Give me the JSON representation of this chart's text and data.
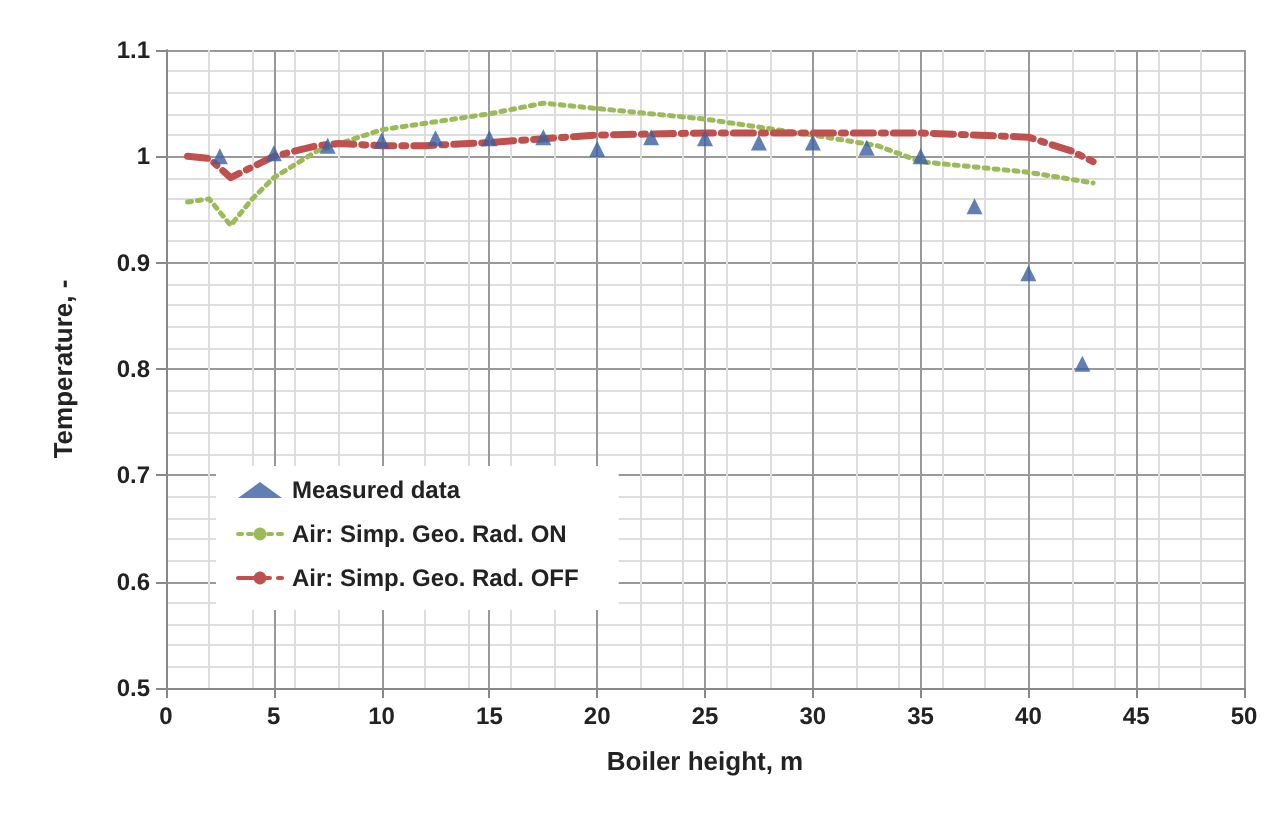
{
  "chart_data": {
    "type": "line",
    "xlabel": "Boiler height, m",
    "ylabel": "Temperature, -",
    "xlim": [
      0,
      50
    ],
    "xticks": [
      0,
      5,
      10,
      15,
      20,
      25,
      30,
      35,
      40,
      45,
      50
    ],
    "ylim": [
      0.5,
      1.1
    ],
    "yticks": [
      0.5,
      0.6,
      0.7,
      0.8,
      0.9,
      1,
      1.1
    ],
    "grid": true,
    "legend": "bottom left",
    "series": [
      {
        "name": "Measured data",
        "type": "scatter",
        "marker": "triangle",
        "color": "#3a5fa0",
        "x": [
          2.5,
          5,
          7.5,
          10,
          12.5,
          15,
          17.5,
          20,
          22.5,
          25,
          27.5,
          30,
          32.5,
          35,
          37.5,
          40,
          42.5
        ],
        "values": [
          1.0,
          1.003,
          1.01,
          1.015,
          1.017,
          1.017,
          1.018,
          1.007,
          1.018,
          1.017,
          1.013,
          1.013,
          1.008,
          1.0,
          0.953,
          0.89,
          0.805
        ]
      },
      {
        "name": "Air: Simp. Geo. Rad. ON",
        "type": "line",
        "line_style": "dotted",
        "color": "#9bbb59",
        "x": [
          1,
          2,
          3,
          4,
          5,
          7,
          10,
          15,
          17.5,
          20,
          25,
          30,
          33,
          35,
          40,
          43
        ],
        "values": [
          0.957,
          0.96,
          0.935,
          0.96,
          0.98,
          1.005,
          1.025,
          1.04,
          1.05,
          1.045,
          1.035,
          1.02,
          1.01,
          0.995,
          0.985,
          0.975
        ]
      },
      {
        "name": "Air: Simp. Geo. Rad. OFF",
        "type": "line",
        "line_style": "dashed",
        "color": "#c0504d",
        "x": [
          1,
          2,
          3,
          4,
          5,
          7,
          8,
          10,
          12,
          15,
          20,
          25,
          30,
          35,
          40,
          42,
          43
        ],
        "values": [
          1.0,
          0.998,
          0.98,
          0.99,
          1.0,
          1.01,
          1.012,
          1.01,
          1.01,
          1.013,
          1.02,
          1.022,
          1.022,
          1.022,
          1.018,
          1.005,
          0.995
        ]
      }
    ]
  }
}
